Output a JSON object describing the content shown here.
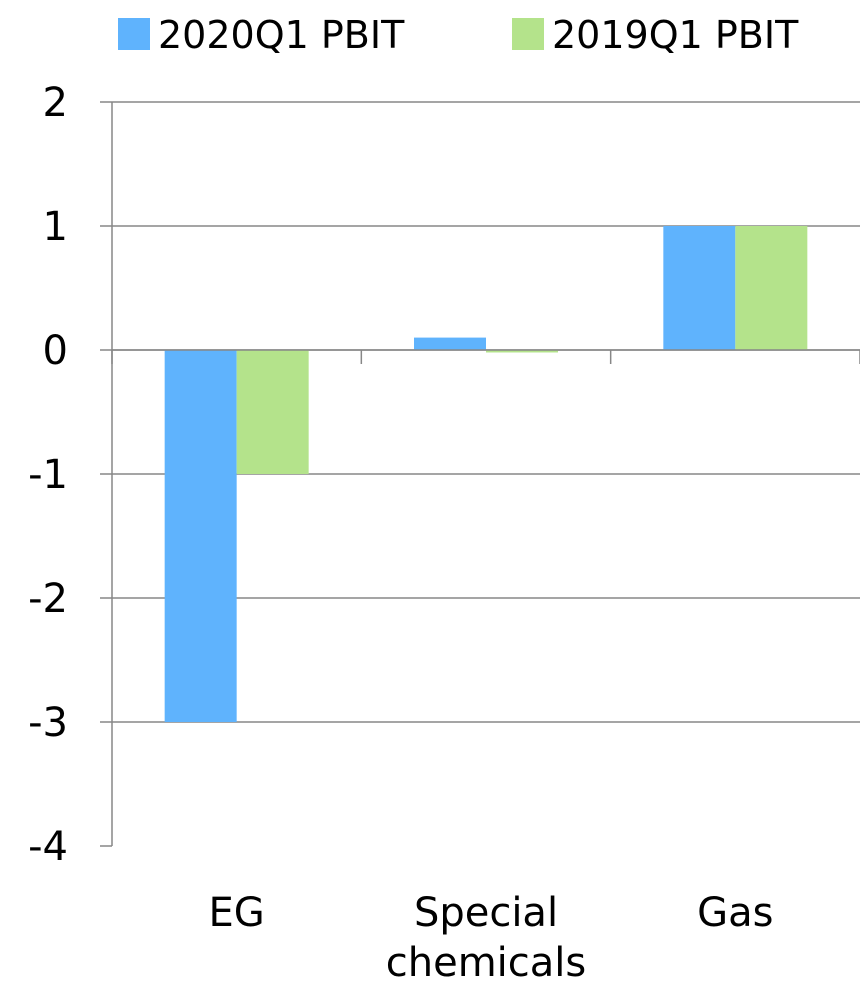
{
  "chart_data": {
    "type": "bar",
    "categories": [
      [
        "EG"
      ],
      [
        "Special",
        "chemicals"
      ],
      [
        "Gas"
      ]
    ],
    "series": [
      {
        "name": "2020Q1 PBIT",
        "color": "#5fb3fd",
        "values": [
          -3,
          0.1,
          1
        ]
      },
      {
        "name": "2019Q1 PBIT",
        "color": "#b4e38b",
        "values": [
          -1,
          -0.02,
          1
        ]
      }
    ],
    "ylim": [
      -4,
      2
    ],
    "yticks": [
      "-4",
      "-3",
      "-2",
      "-1",
      "0",
      "1",
      "2"
    ],
    "title": "",
    "xlabel": "",
    "ylabel": "",
    "grid": true,
    "legend_position": "top"
  }
}
